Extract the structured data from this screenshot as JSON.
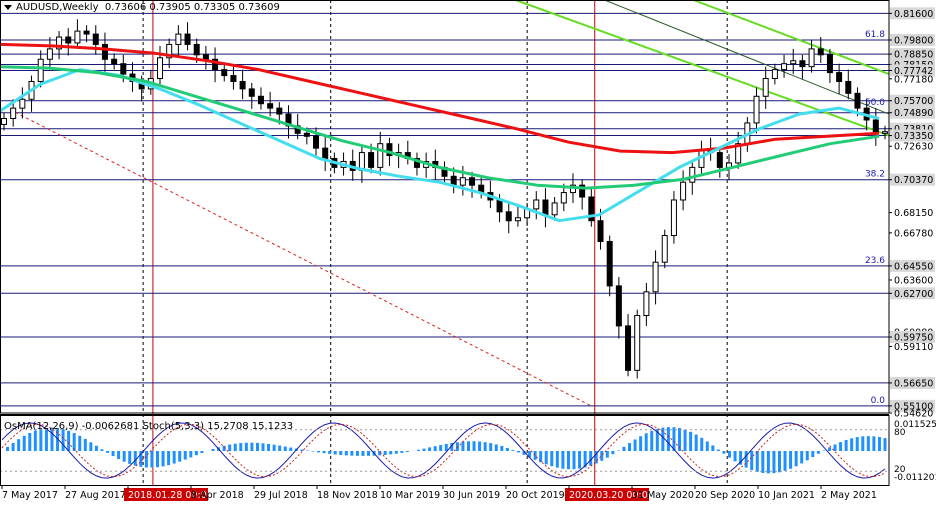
{
  "header": {
    "symbol": "AUDUSD,Weekly",
    "ohlc": "0.73606 0.73905 0.73305 0.73609"
  },
  "oscillator_header": "OsMA(12,26,9) -0.0062681  Stoch(5,3,3) 15.2708 15.1233",
  "colors": {
    "candle": "#000000",
    "ma_red": "#ee1111",
    "ma_cyan": "#44ddee",
    "ma_green": "#22cc77",
    "channel": "#66dd22",
    "trend_dark": "#2a5a2a",
    "trend_red": "#dd2222",
    "vline": "#000000",
    "red_vline": "#cc0000",
    "hline": "#1a1a7a",
    "fib": "#1a1aaa",
    "osma": "#1e90ff",
    "stoch_main": "#1a1aaa",
    "stoch_signal": "#cc2222"
  },
  "chart_data": {
    "type": "candlestick",
    "title": "AUDUSD,Weekly",
    "instrument": "AUDUSD",
    "timeframe": "Weekly",
    "ylim": [
      0.5462,
      0.825
    ],
    "price_labels": [
      "0.81600",
      "0.79800",
      "0.78850",
      "0.78150",
      "0.77742",
      "0.77180",
      "0.75700",
      "0.74890",
      "0.73810",
      "0.73350",
      "0.72630",
      "0.70370",
      "0.68150",
      "0.66780",
      "0.64550",
      "0.63600",
      "0.62700",
      "0.60080",
      "0.59750",
      "0.59110",
      "0.56650",
      "0.55100",
      "0.54620"
    ],
    "highlighted_price_labels": [
      "0.81600",
      "0.79800",
      "0.78850",
      "0.78150",
      "0.77742",
      "0.75700",
      "0.74890",
      "0.73810",
      "0.73350",
      "0.70370",
      "0.64550",
      "0.62700",
      "0.59750",
      "0.56650",
      "0.55100"
    ],
    "x_labels": [
      "7 May 2017",
      "27 Aug 2017",
      "2018.01.28 00:00",
      "8 Apr 2018",
      "29 Jul 2018",
      "18 Nov 2018",
      "10 Mar 2019",
      "30 Jun 2019",
      "20 Oct 2019",
      "2020.03.20 00:00",
      "31 May 2020",
      "20 Sep 2020",
      "10 Jan 2021",
      "2 May 2021"
    ],
    "highlighted_x_labels": [
      "2018.01.28 00:00",
      "2020.03.20 00:00"
    ],
    "horizontal_levels": [
      0.816,
      0.798,
      0.7885,
      0.7815,
      0.77742,
      0.757,
      0.7489,
      0.7381,
      0.7335,
      0.7037,
      0.6455,
      0.627,
      0.5975,
      0.5665,
      0.551
    ],
    "fibonacci": [
      {
        "label": "61.8",
        "value": 0.798
      },
      {
        "label": "50.0",
        "value": 0.752
      },
      {
        "label": "38.2",
        "value": 0.7037
      },
      {
        "label": "23.6",
        "value": 0.6455
      },
      {
        "label": "0.0",
        "value": 0.551
      }
    ],
    "close_series": [
      0.745,
      0.752,
      0.758,
      0.77,
      0.785,
      0.792,
      0.8,
      0.796,
      0.804,
      0.802,
      0.795,
      0.785,
      0.782,
      0.775,
      0.77,
      0.765,
      0.772,
      0.786,
      0.795,
      0.802,
      0.795,
      0.788,
      0.785,
      0.778,
      0.774,
      0.77,
      0.765,
      0.76,
      0.755,
      0.752,
      0.748,
      0.74,
      0.735,
      0.733,
      0.725,
      0.718,
      0.712,
      0.716,
      0.71,
      0.722,
      0.712,
      0.728,
      0.72,
      0.722,
      0.718,
      0.712,
      0.716,
      0.712,
      0.706,
      0.7,
      0.705,
      0.7,
      0.695,
      0.69,
      0.682,
      0.676,
      0.678,
      0.684,
      0.69,
      0.68,
      0.688,
      0.695,
      0.7,
      0.692,
      0.676,
      0.662,
      0.632,
      0.605,
      0.575,
      0.612,
      0.628,
      0.648,
      0.666,
      0.69,
      0.702,
      0.712,
      0.724,
      0.722,
      0.712,
      0.715,
      0.728,
      0.742,
      0.76,
      0.772,
      0.778,
      0.782,
      0.784,
      0.78,
      0.792,
      0.788,
      0.776,
      0.77,
      0.762,
      0.752,
      0.744,
      0.735,
      0.73609
    ],
    "moving_averages": [
      {
        "color": "red",
        "values": [
          0.795,
          0.794,
          0.792,
          0.789,
          0.784,
          0.778,
          0.77,
          0.762,
          0.754,
          0.746,
          0.738,
          0.729,
          0.723,
          0.722,
          0.725,
          0.731,
          0.733,
          0.735
        ]
      },
      {
        "color": "cyan",
        "values": [
          0.75,
          0.768,
          0.778,
          0.774,
          0.765,
          0.754,
          0.742,
          0.73,
          0.718,
          0.711,
          0.706,
          0.702,
          0.695,
          0.686,
          0.676,
          0.68,
          0.696,
          0.712,
          0.725,
          0.738,
          0.748,
          0.752,
          0.745
        ]
      },
      {
        "color": "green",
        "values": [
          0.78,
          0.779,
          0.776,
          0.77,
          0.76,
          0.75,
          0.74,
          0.73,
          0.722,
          0.712,
          0.705,
          0.7,
          0.698,
          0.7,
          0.704,
          0.712,
          0.72,
          0.728,
          0.733
        ]
      }
    ],
    "oscillator": {
      "osma": {
        "name": "OsMA(12,26,9)",
        "last": -0.0062681,
        "scale_labels": [
          "0.0115256",
          "-0.011201"
        ]
      },
      "stochastic": {
        "name": "Stoch(5,3,3)",
        "main": 15.2708,
        "signal": 15.1233,
        "levels": [
          "80",
          "20"
        ]
      }
    }
  }
}
